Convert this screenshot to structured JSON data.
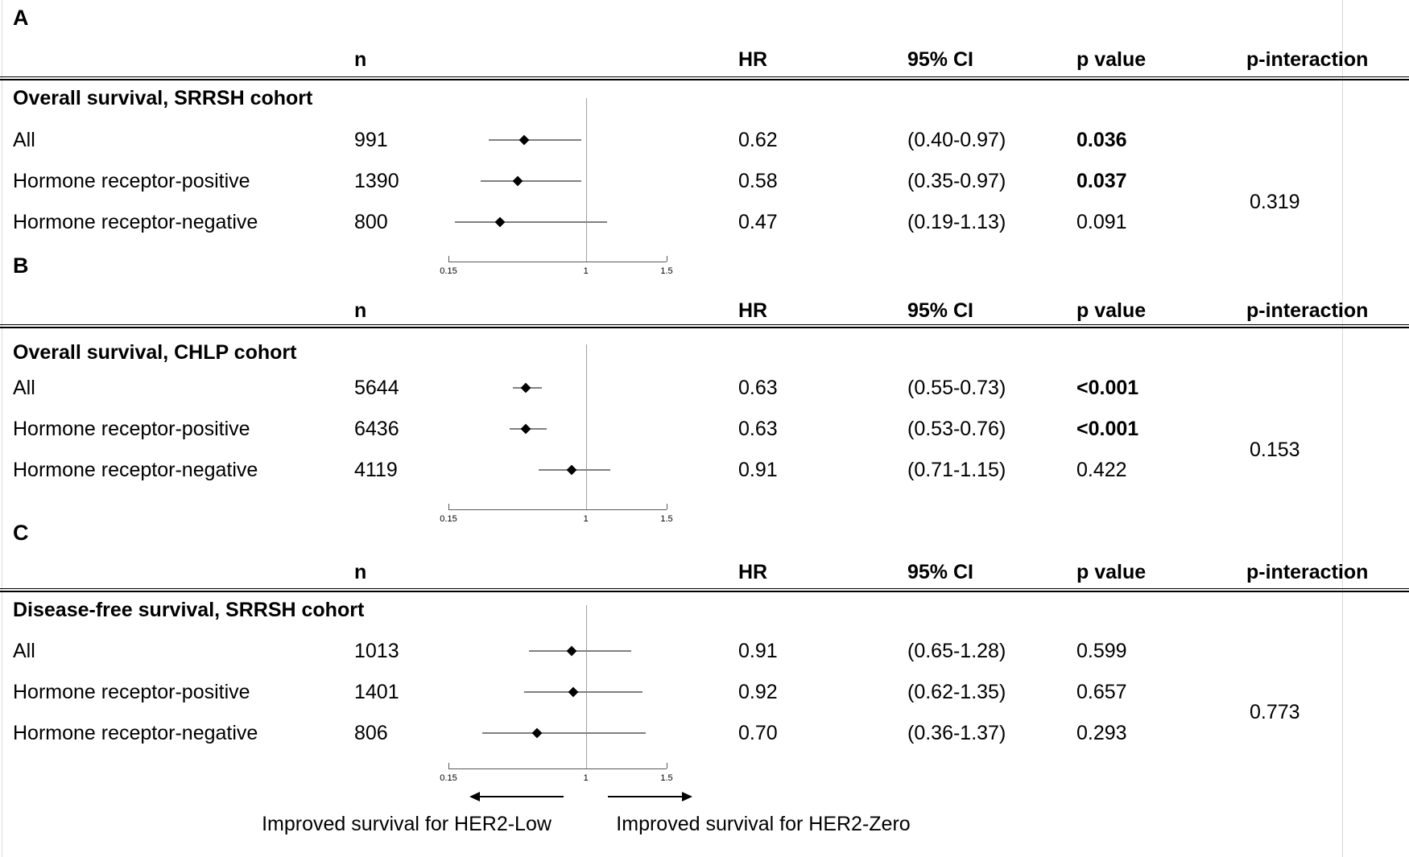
{
  "chart_data": [
    {
      "type": "forest",
      "panel_label": "A",
      "title": "Overall survival, SRRSH cohort",
      "columns": {
        "n": "n",
        "hr": "HR",
        "ci": "95% CI",
        "p": "p value",
        "p_interaction": "p-interaction"
      },
      "axis": {
        "scale": "linear",
        "min": 0.15,
        "max": 1.5,
        "tick_values": [
          0.15,
          1,
          1.5
        ],
        "tick_labels": [
          "0.15",
          "1",
          "1.5"
        ],
        "ref_line": 1
      },
      "rows": [
        {
          "label": "All",
          "n": "991",
          "hr": 0.62,
          "hr_text": "0.62",
          "ci": [
            0.4,
            0.97
          ],
          "ci_text": "(0.40-0.97)",
          "p": "0.036",
          "p_bold": true
        },
        {
          "label": "Hormone receptor-positive",
          "n": "1390",
          "hr": 0.58,
          "hr_text": "0.58",
          "ci": [
            0.35,
            0.97
          ],
          "ci_text": "(0.35-0.97)",
          "p": "0.037",
          "p_bold": true
        },
        {
          "label": "Hormone receptor-negative",
          "n": "800",
          "hr": 0.47,
          "hr_text": "0.47",
          "ci": [
            0.19,
            1.13
          ],
          "ci_text": "(0.19-1.13)",
          "p": "0.091",
          "p_bold": false
        }
      ],
      "p_interaction": "0.319"
    },
    {
      "type": "forest",
      "panel_label": "B",
      "title": "Overall survival, CHLP cohort",
      "columns": {
        "n": "n",
        "hr": "HR",
        "ci": "95% CI",
        "p": "p value",
        "p_interaction": "p-interaction"
      },
      "axis": {
        "scale": "linear",
        "min": 0.15,
        "max": 1.5,
        "tick_values": [
          0.15,
          1,
          1.5
        ],
        "tick_labels": [
          "0.15",
          "1",
          "1.5"
        ],
        "ref_line": 1
      },
      "rows": [
        {
          "label": "All",
          "n": "5644",
          "hr": 0.63,
          "hr_text": "0.63",
          "ci": [
            0.55,
            0.73
          ],
          "ci_text": "(0.55-0.73)",
          "p": "<0.001",
          "p_bold": true
        },
        {
          "label": "Hormone receptor-positive",
          "n": "6436",
          "hr": 0.63,
          "hr_text": "0.63",
          "ci": [
            0.53,
            0.76
          ],
          "ci_text": "(0.53-0.76)",
          "p": "<0.001",
          "p_bold": true
        },
        {
          "label": "Hormone receptor-negative",
          "n": "4119",
          "hr": 0.91,
          "hr_text": "0.91",
          "ci": [
            0.71,
            1.15
          ],
          "ci_text": "(0.71-1.15)",
          "p": "0.422",
          "p_bold": false
        }
      ],
      "p_interaction": "0.153"
    },
    {
      "type": "forest",
      "panel_label": "C",
      "title": "Disease-free survival, SRRSH cohort",
      "columns": {
        "n": "n",
        "hr": "HR",
        "ci": "95% CI",
        "p": "p value",
        "p_interaction": "p-interaction"
      },
      "axis": {
        "scale": "linear",
        "min": 0.15,
        "max": 1.5,
        "tick_values": [
          0.15,
          1,
          1.5
        ],
        "tick_labels": [
          "0.15",
          "1",
          "1.5"
        ],
        "ref_line": 1
      },
      "rows": [
        {
          "label": "All",
          "n": "1013",
          "hr": 0.91,
          "hr_text": "0.91",
          "ci": [
            0.65,
            1.28
          ],
          "ci_text": "(0.65-1.28)",
          "p": "0.599",
          "p_bold": false
        },
        {
          "label": "Hormone receptor-positive",
          "n": "1401",
          "hr": 0.92,
          "hr_text": "0.92",
          "ci": [
            0.62,
            1.35
          ],
          "ci_text": "(0.62-1.35)",
          "p": "0.657",
          "p_bold": false
        },
        {
          "label": "Hormone receptor-negative",
          "n": "806",
          "hr": 0.7,
          "hr_text": "0.70",
          "ci": [
            0.36,
            1.37
          ],
          "ci_text": "(0.36-1.37)",
          "p": "0.293",
          "p_bold": false
        }
      ],
      "p_interaction": "0.773"
    }
  ],
  "footer": {
    "left_label": "Improved survival for HER2-Low",
    "right_label": "Improved survival for HER2-Zero"
  },
  "colors": {
    "text": "#000000",
    "ci_line": "#808080",
    "ref_line": "#a0a0a0",
    "axis_line": "#595959",
    "header_rule": "#000000",
    "page_border": "#d9d9d9"
  }
}
